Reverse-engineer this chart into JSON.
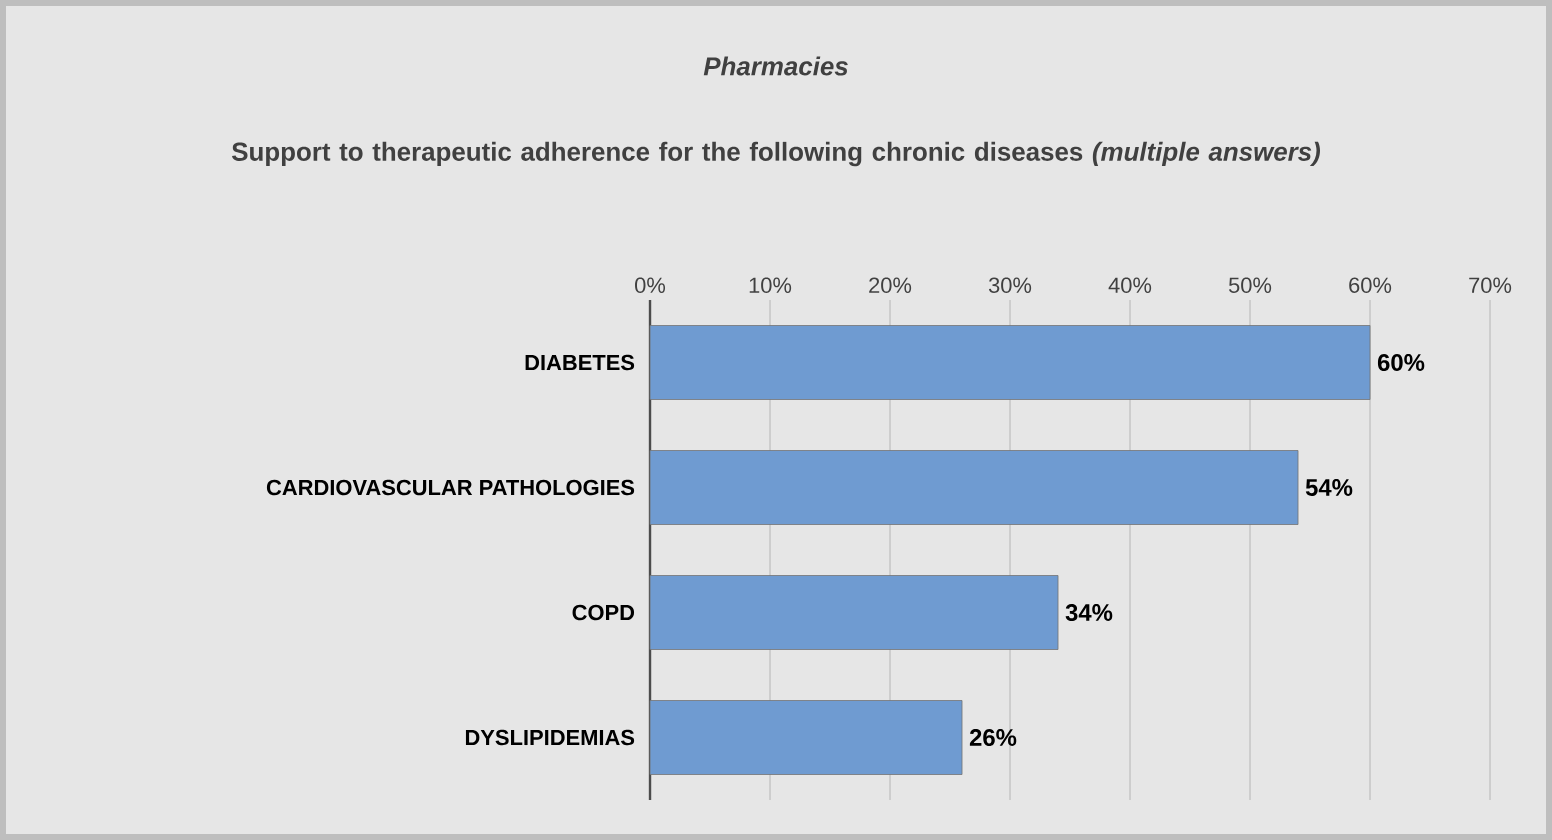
{
  "chart_data": {
    "type": "bar",
    "orientation": "horizontal",
    "title": "Pharmacies",
    "subtitle": "Support to therapeutic adherence for the following chronic diseases *(multiple answers)*",
    "categories": [
      "DIABETES",
      "CARDIOVASCULAR   PATHOLOGIES",
      "COPD",
      "DYSLIPIDEMIAS"
    ],
    "values": [
      60,
      54,
      34,
      26
    ],
    "value_labels": [
      "60%",
      "54%",
      "34%",
      "26%"
    ],
    "color": "#6f9bd1",
    "xlim": [
      0,
      70
    ],
    "xticks": [
      {
        "value": 0,
        "label": "0%"
      },
      {
        "value": 10,
        "label": "10%"
      },
      {
        "value": 20,
        "label": "20%"
      },
      {
        "value": 30,
        "label": "30%"
      },
      {
        "value": 40,
        "label": "40%"
      },
      {
        "value": 50,
        "label": "50%"
      },
      {
        "value": 60,
        "label": "60%"
      },
      {
        "value": 70,
        "label": "70%"
      }
    ],
    "grid": "x"
  }
}
